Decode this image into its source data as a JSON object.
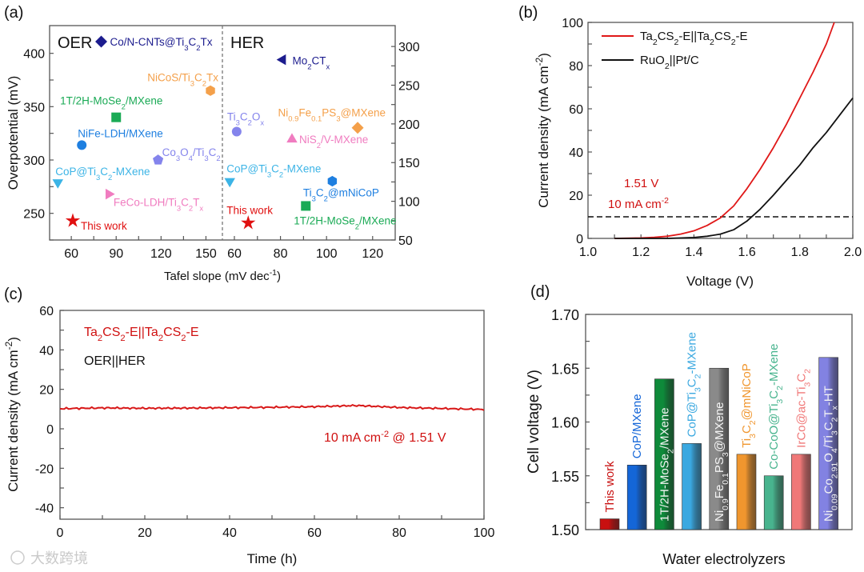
{
  "watermark": "大数跨境",
  "chart_data": [
    {
      "panel": "(a)",
      "type": "scatter",
      "xlabel": "Tafel slope (mV dec^{-1})",
      "ylabel": "Overpotential (mV)",
      "left": {
        "title": "OER",
        "xlim": [
          45.5,
          161
        ],
        "ylim": [
          225,
          426
        ],
        "xticks": [
          60,
          90,
          120,
          150
        ],
        "yticks": [
          250,
          300,
          350,
          400
        ],
        "points": [
          {
            "label": "Co/N-CNTs@Ti_{3}C_{2}Tx",
            "x": 80,
            "y": 411,
            "marker": "diamond",
            "color": "#1c1c8e"
          },
          {
            "label": "NiCoS/Ti_{3}C_{2}Tx",
            "x": 153,
            "y": 365,
            "marker": "hexagon",
            "color": "#f4a04a"
          },
          {
            "label": "1T/2H-MoSe_{2}/MXene",
            "x": 90,
            "y": 340,
            "marker": "square",
            "color": "#1aaa55"
          },
          {
            "label": "NiFe-LDH/MXene",
            "x": 67,
            "y": 314,
            "marker": "circle",
            "color": "#1e7fe0"
          },
          {
            "label": "Co_{3}O_{4}/Ti_{3}C_{2}",
            "x": 118,
            "y": 300,
            "marker": "pentagon",
            "color": "#8484ec"
          },
          {
            "label": "CoP@Ti_{3}C_{2}-MXene",
            "x": 51,
            "y": 279,
            "marker": "tri-down",
            "color": "#3cb4e6"
          },
          {
            "label": "FeCo-LDH/Ti_{3}C_{2}T_{x}",
            "x": 85,
            "y": 268,
            "marker": "tri-right",
            "color": "#f07cc0"
          },
          {
            "label": "This work",
            "x": 61,
            "y": 243,
            "marker": "star",
            "color": "#e01010"
          }
        ]
      },
      "right": {
        "title": "HER",
        "xlim": [
          54.8,
          129.8
        ],
        "ylim": [
          50,
          327
        ],
        "xticks": [
          60,
          80,
          100,
          120
        ],
        "yticks": [
          50,
          100,
          150,
          200,
          250,
          300
        ],
        "points": [
          {
            "label": "Mo_{2}CT_{x}",
            "x": 81,
            "y": 283,
            "marker": "tri-left",
            "color": "#1c1c8e"
          },
          {
            "label": "Ti_{3}C_{2}O_{x}",
            "x": 61,
            "y": 190,
            "marker": "circle",
            "color": "#8484ec"
          },
          {
            "label": "Ni_{0.9}Fe_{0.1}PS_{3}@MXene",
            "x": 113.5,
            "y": 195,
            "marker": "diamond",
            "color": "#f4a04a"
          },
          {
            "label": "NiS_{2}/V-MXene",
            "x": 85,
            "y": 180,
            "marker": "tri-up",
            "color": "#f07cc0"
          },
          {
            "label": "CoP@Ti_{3}C_{2}-MXene",
            "x": 58,
            "y": 126,
            "marker": "tri-down",
            "color": "#3cb4e6"
          },
          {
            "label": "Ti_{3}C_{2}@mNiCoP",
            "x": 102.5,
            "y": 126,
            "marker": "hexagon",
            "color": "#1e7fe0"
          },
          {
            "label": "1T/2H-MoSe_{2}/MXene",
            "x": 91,
            "y": 94,
            "marker": "square",
            "color": "#1aaa55"
          },
          {
            "label": "This work",
            "x": 66,
            "y": 72,
            "marker": "star",
            "color": "#e01010"
          }
        ]
      }
    },
    {
      "panel": "(b)",
      "type": "line",
      "xlabel": "Voltage (V)",
      "ylabel": "Current density (mA cm^{-2})",
      "xlim": [
        1.0,
        2.0
      ],
      "ylim": [
        0,
        100
      ],
      "xticks": [
        1.0,
        1.2,
        1.4,
        1.6,
        1.8,
        2.0
      ],
      "yticks": [
        0,
        20,
        40,
        60,
        80,
        100
      ],
      "reference_line": 10,
      "annotations": [
        "1.51 V",
        "10 mA cm^{-2}"
      ],
      "legend_position": "top-left",
      "series": [
        {
          "name": "Ta_{2}CS_{2}-E||Ta_{2}CS_{2}-E",
          "color": "#e01818",
          "points": [
            [
              1.1,
              0
            ],
            [
              1.2,
              0.2
            ],
            [
              1.25,
              0.5
            ],
            [
              1.3,
              1
            ],
            [
              1.35,
              2
            ],
            [
              1.4,
              3.5
            ],
            [
              1.45,
              6
            ],
            [
              1.5,
              9.5
            ],
            [
              1.55,
              15
            ],
            [
              1.6,
              23
            ],
            [
              1.65,
              32
            ],
            [
              1.7,
              42
            ],
            [
              1.75,
              53
            ],
            [
              1.8,
              65
            ],
            [
              1.85,
              77
            ],
            [
              1.9,
              90
            ],
            [
              1.93,
              100
            ]
          ]
        },
        {
          "name": "RuO_{2}||Pt/C",
          "color": "#111111",
          "points": [
            [
              1.1,
              0
            ],
            [
              1.3,
              0
            ],
            [
              1.4,
              0.4
            ],
            [
              1.45,
              1
            ],
            [
              1.5,
              2
            ],
            [
              1.55,
              4
            ],
            [
              1.6,
              8
            ],
            [
              1.65,
              13.5
            ],
            [
              1.7,
              20
            ],
            [
              1.75,
              27
            ],
            [
              1.8,
              34
            ],
            [
              1.85,
              42
            ],
            [
              1.9,
              49
            ],
            [
              1.95,
              57
            ],
            [
              2.0,
              65
            ]
          ]
        }
      ]
    },
    {
      "panel": "(c)",
      "type": "line",
      "xlabel": "Time (h)",
      "ylabel": "Current density (mA cm^{-2})",
      "xlim": [
        0,
        100
      ],
      "ylim": [
        -45,
        60
      ],
      "xticks": [
        0,
        20,
        40,
        60,
        80,
        100
      ],
      "yticks": [
        -40,
        -20,
        0,
        20,
        40,
        60
      ],
      "legend": [
        "Ta_{2}CS_{2}-E||Ta_{2}CS_{2}-E",
        "OER||HER"
      ],
      "annotation": "10 mA cm^{-2} @ 1.51 V",
      "series": [
        {
          "name": "Ta_{2}CS_{2}-E||Ta_{2}CS_{2}-E",
          "color": "#d81818",
          "points": [
            [
              0,
              10.2
            ],
            [
              10,
              10.6
            ],
            [
              20,
              10.4
            ],
            [
              30,
              10.5
            ],
            [
              40,
              10.7
            ],
            [
              50,
              10.9
            ],
            [
              60,
              11.2
            ],
            [
              70,
              11.8
            ],
            [
              80,
              10.8
            ],
            [
              90,
              10.3
            ],
            [
              100,
              9.8
            ]
          ]
        }
      ]
    },
    {
      "panel": "(d)",
      "type": "bar",
      "xlabel": "Water electrolyzers",
      "ylabel": "Cell voltage (V)",
      "ylim": [
        1.5,
        1.7
      ],
      "yticks": [
        "1.50",
        "1.55",
        "1.60",
        "1.65",
        "1.70"
      ],
      "categories": [
        "This work",
        "CoP/MXene",
        "1T/2H-MoSe_{2}/MXene",
        "CoP@Ti_{3}C_{2}-MXene",
        "Ni_{0.9}Fe_{0.1}PS_{3}@MXene",
        "Ti_{3}C_{2}@mNiCoP",
        "Co-CoO@Ti_{3}C_{2}-MXene",
        "IrCo@ac-Ti_{3}C_{2}",
        "Ni_{0.09}Co_{2.91}O_{4}/Ti_{3}C_{2}T_{x}-HT"
      ],
      "values": [
        1.51,
        1.56,
        1.64,
        1.58,
        1.65,
        1.57,
        1.55,
        1.57,
        1.66
      ],
      "colors": [
        "#c81010",
        "#1466d8",
        "#0e8a3a",
        "#3aa8e0",
        "#8a8a8a",
        "#f0962e",
        "#48b48e",
        "#f07878",
        "#8282e2"
      ]
    }
  ]
}
